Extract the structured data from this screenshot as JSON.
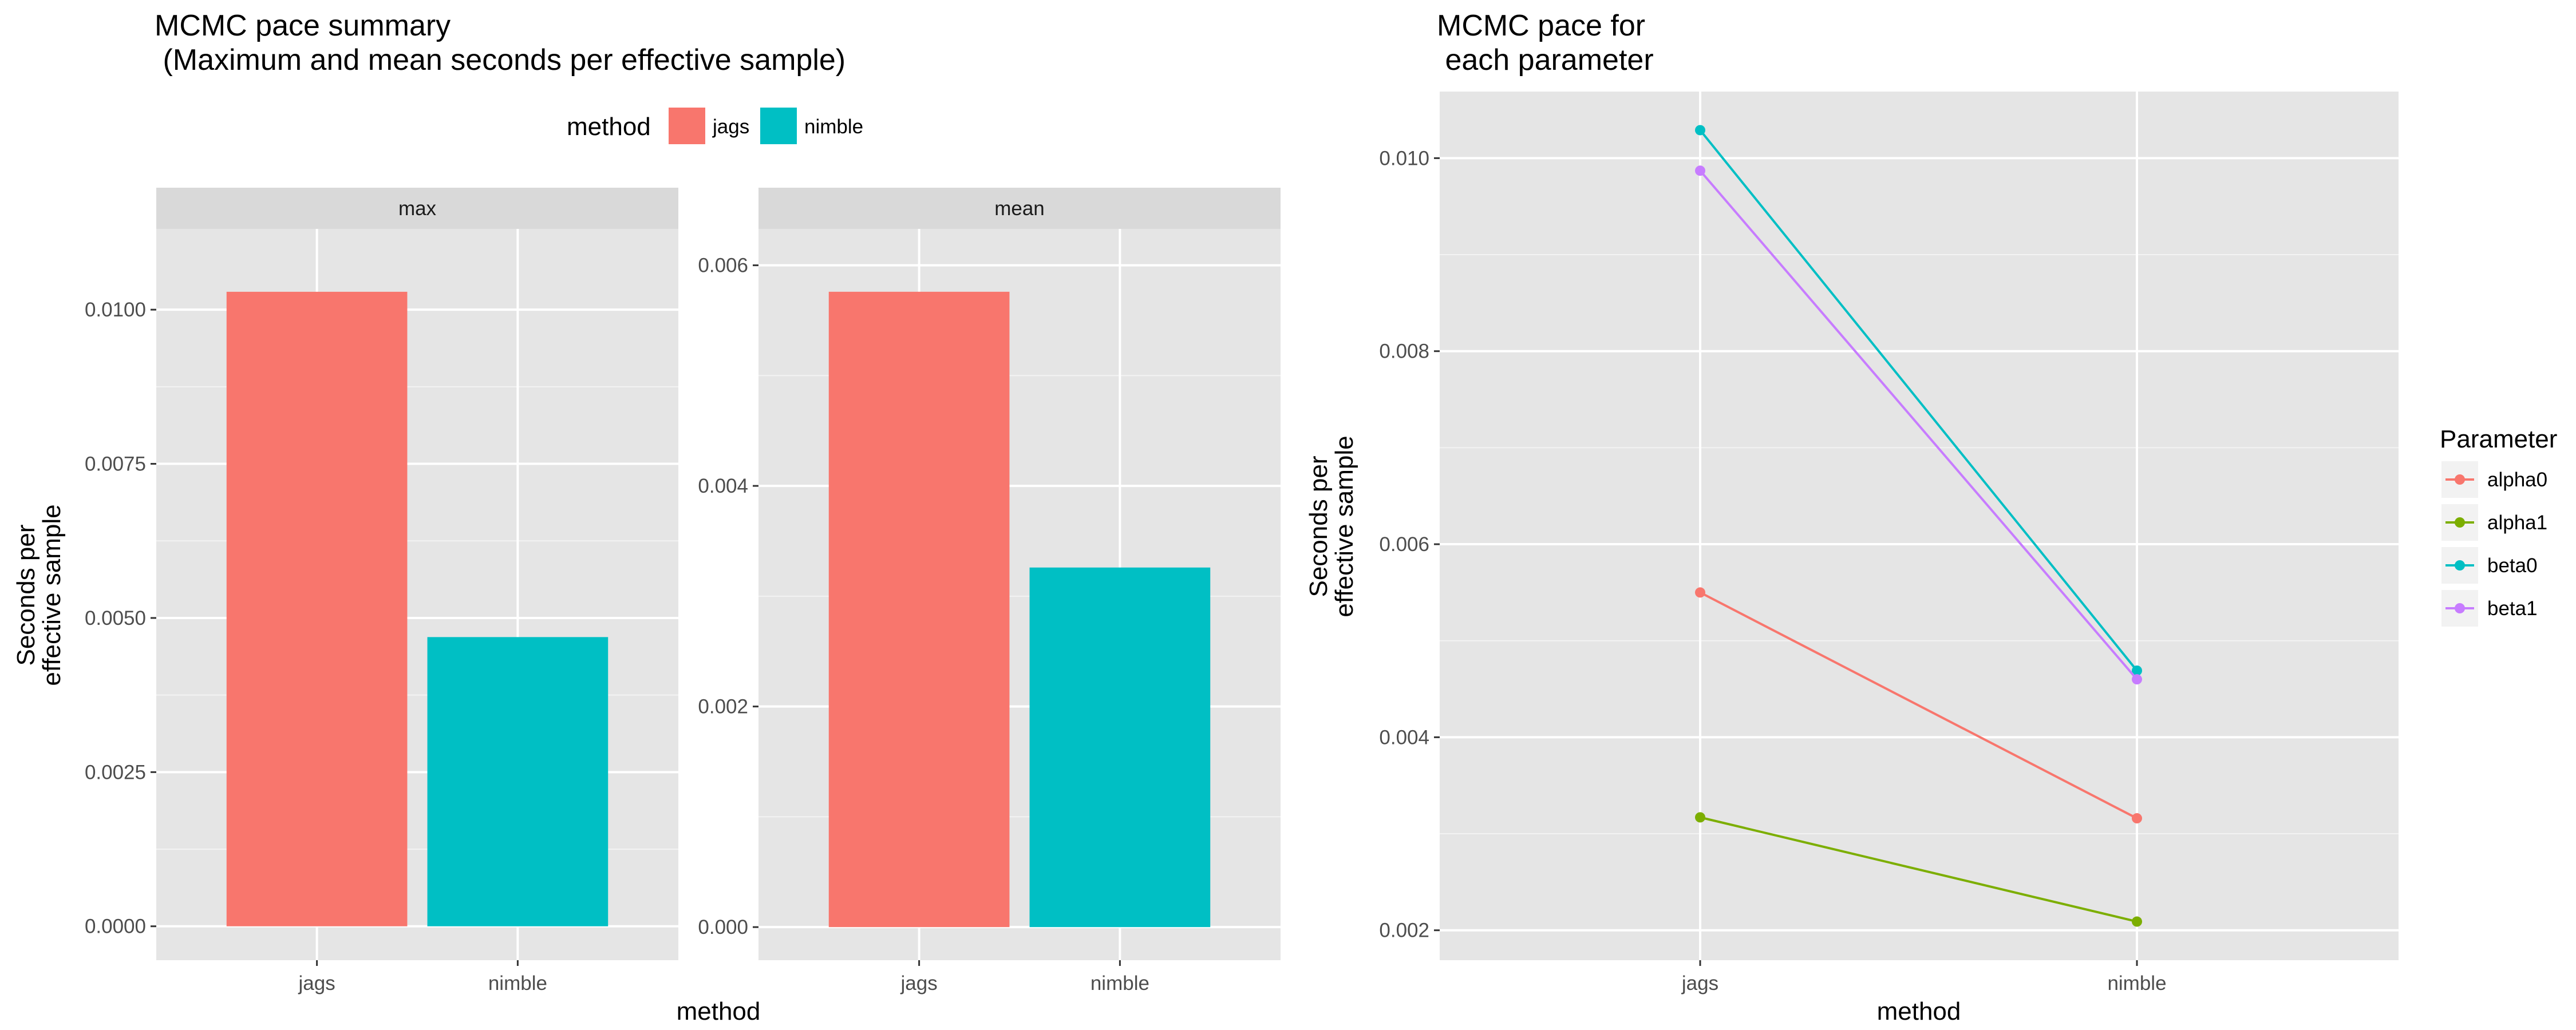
{
  "left_title_line1": "MCMC pace summary",
  "left_title_line2": " (Maximum and mean seconds per effective sample)",
  "right_title_line1": "MCMC pace for",
  "right_title_line2": " each parameter",
  "left_legend_title": "method",
  "right_legend_title": "Parameter",
  "ylabel_line1": "Seconds per",
  "ylabel_line2": "effective sample",
  "xlabel": "method",
  "colors": {
    "panel_bg": "#e5e5e5",
    "grid_major": "#ffffff",
    "strip_bg": "#d9d9d9",
    "tick": "#333333"
  },
  "chart_data": [
    {
      "type": "bar",
      "facet": "max",
      "categories": [
        "jags",
        "nimble"
      ],
      "values": [
        0.01029,
        0.00469
      ],
      "colors": [
        "#F8766D",
        "#00BFC4"
      ],
      "ylim": [
        -0.00055,
        0.01131
      ],
      "yticks": [
        0.0,
        0.0025,
        0.005,
        0.0075,
        0.01
      ],
      "ytick_labels": [
        "0.0000",
        "0.0025",
        "0.0050",
        "0.0075",
        "0.0100"
      ],
      "legend": [
        "jags",
        "nimble"
      ],
      "legend_position": "top"
    },
    {
      "type": "bar",
      "facet": "mean",
      "categories": [
        "jags",
        "nimble"
      ],
      "values": [
        0.00576,
        0.00326
      ],
      "colors": [
        "#F8766D",
        "#00BFC4"
      ],
      "ylim": [
        -0.0003,
        0.00633
      ],
      "yticks": [
        0.0,
        0.002,
        0.004,
        0.006
      ],
      "ytick_labels": [
        "0.000",
        "0.002",
        "0.004",
        "0.006"
      ]
    },
    {
      "type": "line",
      "categories": [
        "jags",
        "nimble"
      ],
      "series": [
        {
          "name": "alpha0",
          "values": [
            0.0055,
            0.00316
          ],
          "color": "#F8766D"
        },
        {
          "name": "alpha1",
          "values": [
            0.00317,
            0.00209
          ],
          "color": "#7CAE00"
        },
        {
          "name": "beta0",
          "values": [
            0.01029,
            0.00469
          ],
          "color": "#00BFC4"
        },
        {
          "name": "beta1",
          "values": [
            0.00987,
            0.0046
          ],
          "color": "#C77CFF"
        }
      ],
      "ylim": [
        0.00169,
        0.01069
      ],
      "yticks": [
        0.002,
        0.004,
        0.006,
        0.008,
        0.01
      ],
      "ytick_labels": [
        "0.002",
        "0.004",
        "0.006",
        "0.008",
        "0.010"
      ],
      "legend_position": "right"
    }
  ]
}
